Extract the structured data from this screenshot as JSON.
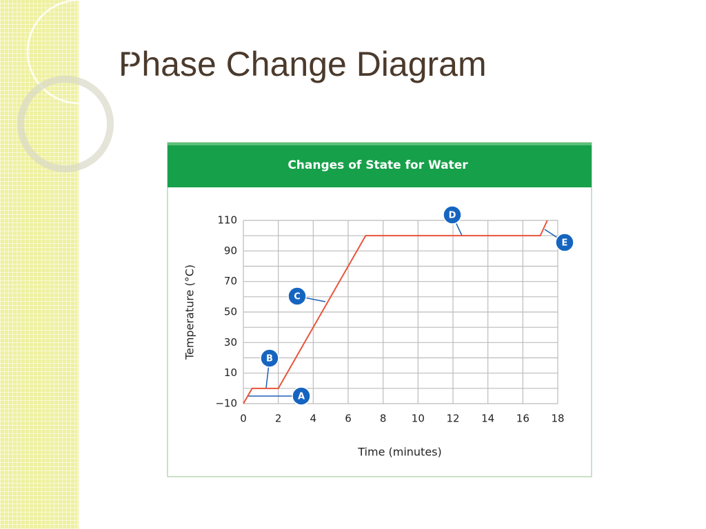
{
  "slide": {
    "title": "Phase Change Diagram"
  },
  "chart_data": {
    "type": "line",
    "title": "Changes of State for Water",
    "xlabel": "Time (minutes)",
    "ylabel": "Temperature (°C)",
    "x": [
      0,
      0.5,
      2,
      7,
      17,
      17.4
    ],
    "values": [
      -10,
      0,
      0,
      100,
      100,
      110
    ],
    "color": "#e8543a",
    "xlim": [
      0,
      18
    ],
    "xticks": [
      0,
      2,
      4,
      6,
      8,
      10,
      12,
      14,
      16,
      18
    ],
    "ylim": [
      -10,
      110
    ],
    "yticks": [
      {
        "value": -10,
        "label": "−10"
      },
      10,
      30,
      50,
      70,
      90,
      110
    ],
    "minor_yticks": [
      0,
      20,
      40,
      60,
      80,
      100
    ],
    "grid": true,
    "annotations": [
      "A",
      "B",
      "C",
      "D",
      "E"
    ]
  }
}
